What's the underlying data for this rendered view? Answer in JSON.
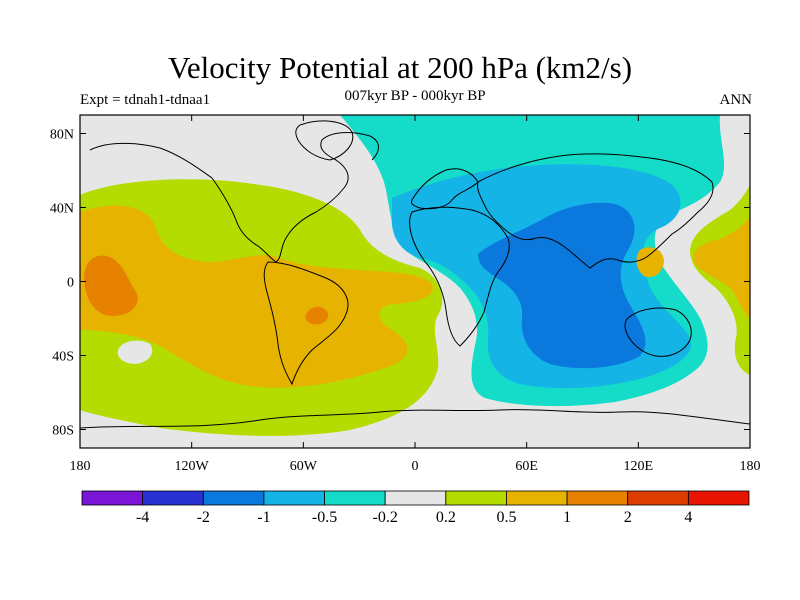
{
  "title": "Velocity Potential at 200 hPa (km2/s)",
  "subtitle_left": "Expt = tdnah1-tdnaa1",
  "subtitle_center": "007kyr BP - 000kyr BP",
  "subtitle_right": "ANN",
  "map": {
    "lon_range": [
      -180,
      180
    ],
    "lat_range": [
      -90,
      90
    ],
    "lat_ticks": [
      {
        "value": 80,
        "label": "80N"
      },
      {
        "value": 40,
        "label": "40N"
      },
      {
        "value": 0,
        "label": "0"
      },
      {
        "value": -40,
        "label": "40S"
      },
      {
        "value": -80,
        "label": "80S"
      }
    ],
    "lon_ticks": [
      {
        "value": -180,
        "label": "180"
      },
      {
        "value": -120,
        "label": "120W"
      },
      {
        "value": -60,
        "label": "60W"
      },
      {
        "value": 0,
        "label": "0"
      },
      {
        "value": 60,
        "label": "60E"
      },
      {
        "value": 120,
        "label": "120E"
      },
      {
        "value": 180,
        "label": "180"
      }
    ]
  },
  "colorbar": {
    "colors": [
      "#7a14d6",
      "#2832d2",
      "#0a78dc",
      "#14b4e6",
      "#14dcc8",
      "#e6e6e6",
      "#b4dc00",
      "#e6b400",
      "#e68200",
      "#dc3c00",
      "#e61400"
    ],
    "labels": [
      "-4",
      "-2",
      "-1",
      "-0.5",
      "-0.2",
      "0.2",
      "0.5",
      "1",
      "2",
      "4"
    ]
  },
  "colors": {
    "coast": "#000000",
    "background": "#e6e6e6"
  }
}
